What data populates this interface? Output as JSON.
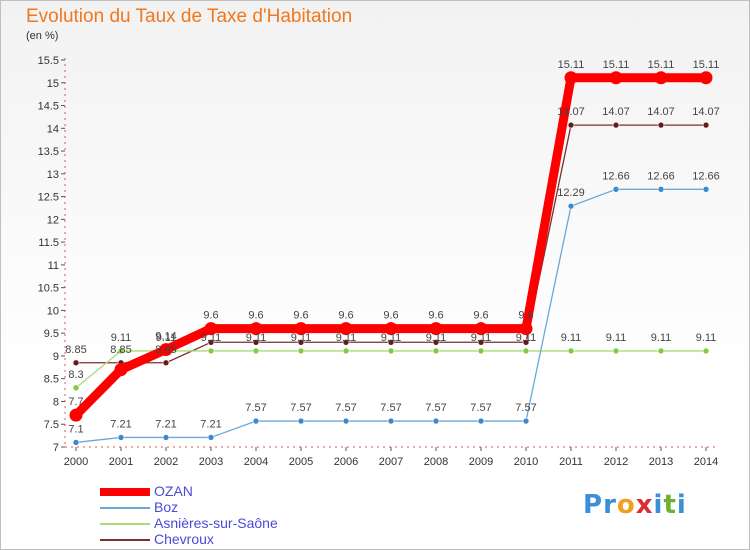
{
  "title": "Evolution du Taux de Taxe d'Habitation",
  "subtitle": "(en %)",
  "logo": {
    "text": "Proxiti",
    "letters": [
      {
        "ch": "P",
        "color": "#3a8fd8"
      },
      {
        "ch": "r",
        "color": "#3a8fd8"
      },
      {
        "ch": "o",
        "color": "#f0a020"
      },
      {
        "ch": "x",
        "color": "#d83030"
      },
      {
        "ch": "i",
        "color": "#3a8fd8"
      },
      {
        "ch": "t",
        "color": "#70b030"
      },
      {
        "ch": "i",
        "color": "#3a8fd8"
      }
    ]
  },
  "chart_data": {
    "type": "line",
    "title": "Evolution du Taux de Taxe d'Habitation",
    "ylabel": "(en %)",
    "xlabel": "",
    "ylim": [
      7,
      15.5
    ],
    "yticks": [
      7,
      7.5,
      8,
      8.5,
      9,
      9.5,
      10,
      10.5,
      11,
      11.5,
      12,
      12.5,
      13,
      13.5,
      14,
      14.5,
      15,
      15.5
    ],
    "ytick_labels": [
      "7",
      "7.5",
      "8",
      "8.5",
      "9",
      "9.5",
      "10",
      "10.5",
      "11",
      "11.5",
      "12",
      "12.5",
      "13",
      "13.5",
      "14",
      "14.5",
      "15",
      "15.5"
    ],
    "categories": [
      "2000",
      "2001",
      "2002",
      "2003",
      "2004",
      "2005",
      "2006",
      "2007",
      "2008",
      "2009",
      "2010",
      "2011",
      "2012",
      "2013",
      "2014"
    ],
    "grid": false,
    "legend_position": "bottom-left",
    "series": [
      {
        "name": "OZAN",
        "color": "#ff0000",
        "marker_color": "#ff0000",
        "values": [
          7.7,
          8.7,
          9.14,
          9.6,
          9.6,
          9.6,
          9.6,
          9.6,
          9.6,
          9.6,
          9.6,
          15.11,
          15.11,
          15.11,
          15.11
        ],
        "labels": [
          "7.7",
          "",
          "9.14",
          "9.6",
          "9.6",
          "9.6",
          "9.6",
          "9.6",
          "9.6",
          "9.6",
          "9.6",
          "15.11",
          "15.11",
          "15.11",
          "15.11"
        ]
      },
      {
        "name": "Boz",
        "color": "#6aa8d8",
        "marker_color": "#3a8ad0",
        "values": [
          7.1,
          7.21,
          7.21,
          7.21,
          7.57,
          7.57,
          7.57,
          7.57,
          7.57,
          7.57,
          7.57,
          12.29,
          12.66,
          12.66,
          12.66
        ],
        "labels": [
          "7.1",
          "7.21",
          "7.21",
          "7.21",
          "7.57",
          "7.57",
          "7.57",
          "7.57",
          "7.57",
          "7.57",
          "7.57",
          "12.29",
          "12.66",
          "12.66",
          "12.66"
        ]
      },
      {
        "name": "Asnières-sur-Saône",
        "color": "#a8dc78",
        "marker_color": "#80cc40",
        "values": [
          8.3,
          9.11,
          9.11,
          9.11,
          9.11,
          9.11,
          9.11,
          9.11,
          9.11,
          9.11,
          9.11,
          9.11,
          9.11,
          9.11,
          9.11
        ],
        "labels": [
          "8.3",
          "9.11",
          "9.11",
          "9.11",
          "9.11",
          "9.11",
          "9.11",
          "9.11",
          "9.11",
          "9.11",
          "9.11",
          "9.11",
          "9.11",
          "9.11",
          "9.11"
        ]
      },
      {
        "name": "Chevroux",
        "color": "#7a3030",
        "marker_color": "#6a1818",
        "values": [
          8.85,
          8.85,
          8.85,
          9.3,
          9.3,
          9.3,
          9.3,
          9.3,
          9.3,
          9.3,
          9.3,
          14.07,
          14.07,
          14.07,
          14.07
        ],
        "labels": [
          "8.85",
          "8.85",
          "8.85",
          "",
          "",
          "",
          "",
          "",
          "",
          "",
          "",
          "14.07",
          "14.07",
          "14.07",
          "14.07"
        ]
      }
    ]
  }
}
